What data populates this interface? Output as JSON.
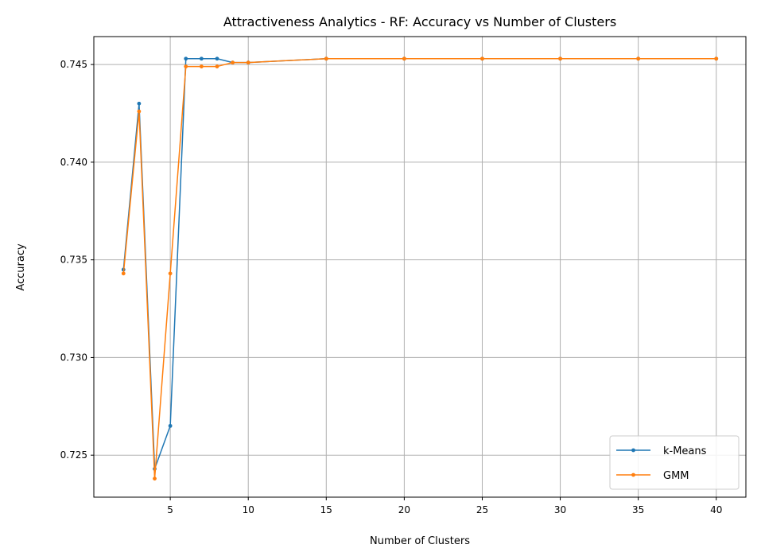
{
  "chart_data": {
    "type": "line",
    "title": "Attractiveness Analytics - RF: Accuracy vs Number of Clusters",
    "xlabel": "Number of Clusters",
    "ylabel": "Accuracy",
    "xlim": [
      0.1,
      41.9
    ],
    "ylim": [
      0.72285,
      0.74643
    ],
    "x_ticks": [
      5,
      10,
      15,
      20,
      25,
      30,
      35,
      40
    ],
    "x_tick_labels": [
      "5",
      "10",
      "15",
      "20",
      "25",
      "30",
      "35",
      "40"
    ],
    "y_ticks": [
      0.725,
      0.73,
      0.735,
      0.74,
      0.745
    ],
    "y_tick_labels": [
      "0.725",
      "0.730",
      "0.735",
      "0.740",
      "0.745"
    ],
    "grid": true,
    "legend_position": "lower-right",
    "x": [
      2,
      3,
      4,
      5,
      6,
      7,
      8,
      9,
      10,
      15,
      20,
      25,
      30,
      35,
      40
    ],
    "series": [
      {
        "name": "k-Means",
        "color": "#1f77b4",
        "values": [
          0.7345,
          0.743,
          0.7243,
          0.7265,
          0.7453,
          0.7453,
          0.7453,
          0.7451,
          0.7451,
          0.7453,
          0.7453,
          0.7453,
          0.7453,
          0.7453,
          0.7453
        ]
      },
      {
        "name": "GMM",
        "color": "#ff7f0e",
        "values": [
          0.7343,
          0.7426,
          0.7238,
          0.7343,
          0.7449,
          0.7449,
          0.7449,
          0.7451,
          0.7451,
          0.7453,
          0.7453,
          0.7453,
          0.7453,
          0.7453,
          0.7453
        ]
      }
    ]
  }
}
